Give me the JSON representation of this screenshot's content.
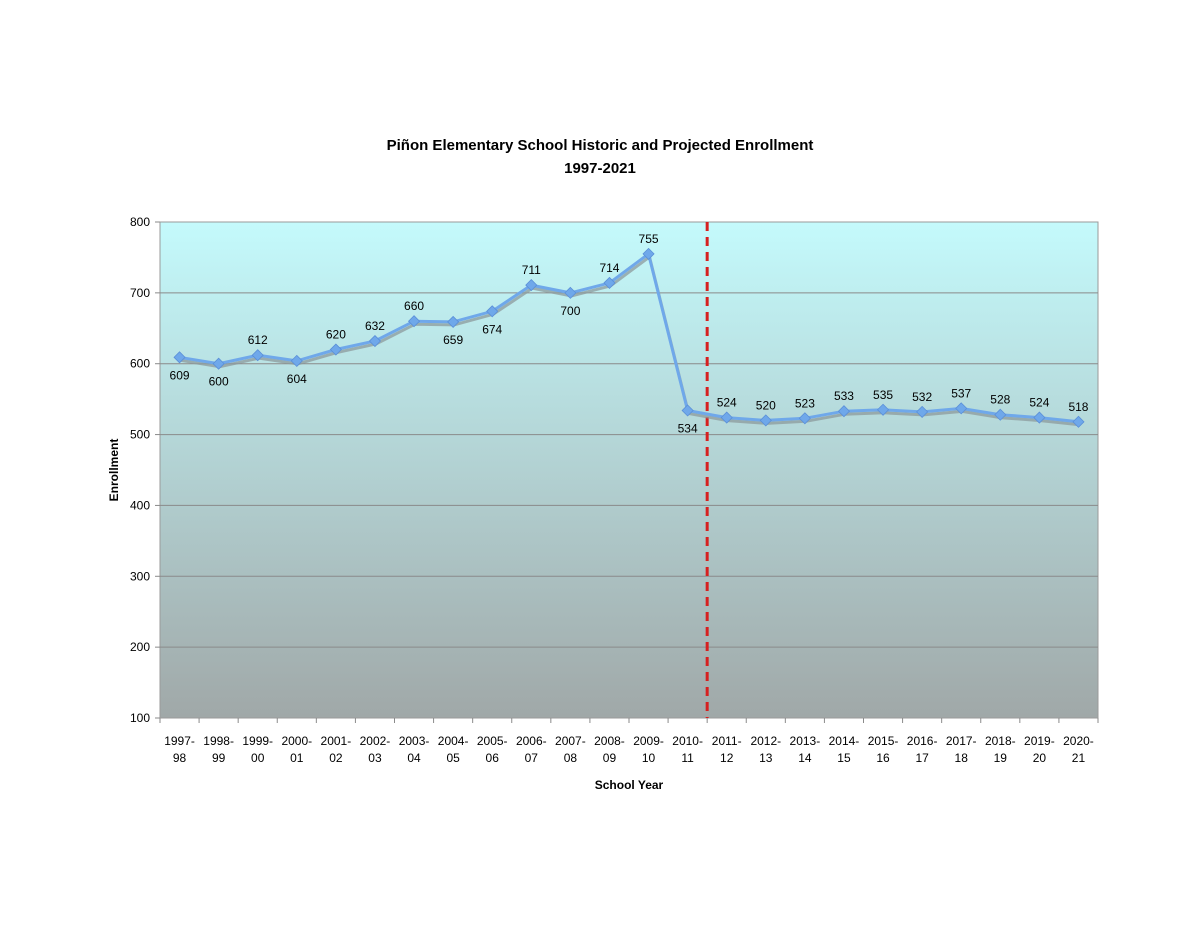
{
  "chart_data": {
    "type": "line",
    "title": "Piñon Elementary School Historic and Projected Enrollment",
    "subtitle": "1997-2021",
    "xlabel": "School Year",
    "ylabel": "Enrollment",
    "ylim": [
      100,
      800
    ],
    "yticks": [
      100,
      200,
      300,
      400,
      500,
      600,
      700,
      800
    ],
    "grid": true,
    "legend": "none",
    "categories": [
      [
        "1997-",
        "98"
      ],
      [
        "1998-",
        "99"
      ],
      [
        "1999-",
        "00"
      ],
      [
        "2000-",
        "01"
      ],
      [
        "2001-",
        "02"
      ],
      [
        "2002-",
        "03"
      ],
      [
        "2003-",
        "04"
      ],
      [
        "2004-",
        "05"
      ],
      [
        "2005-",
        "06"
      ],
      [
        "2006-",
        "07"
      ],
      [
        "2007-",
        "08"
      ],
      [
        "2008-",
        "09"
      ],
      [
        "2009-",
        "10"
      ],
      [
        "2010-",
        "11"
      ],
      [
        "2011-",
        "12"
      ],
      [
        "2012-",
        "13"
      ],
      [
        "2013-",
        "14"
      ],
      [
        "2014-",
        "15"
      ],
      [
        "2015-",
        "16"
      ],
      [
        "2016-",
        "17"
      ],
      [
        "2017-",
        "18"
      ],
      [
        "2018-",
        "19"
      ],
      [
        "2019-",
        "20"
      ],
      [
        "2020-",
        "21"
      ]
    ],
    "series": [
      {
        "values": [
          609,
          600,
          612,
          604,
          620,
          632,
          660,
          659,
          674,
          711,
          700,
          714,
          755,
          534,
          524,
          520,
          523,
          533,
          535,
          532,
          537,
          528,
          524,
          518
        ],
        "color": "#6fa8ea"
      }
    ],
    "label_position": [
      "below",
      "below",
      "above",
      "below",
      "above",
      "above",
      "above",
      "below",
      "below",
      "above",
      "below",
      "above",
      "above",
      "below",
      "above",
      "above",
      "above",
      "above",
      "above",
      "above",
      "above",
      "above",
      "above",
      "above"
    ],
    "projection_divider": {
      "after_category_index": 13,
      "color": "#d62020",
      "style": "dashed"
    },
    "background_gradient": [
      "#c4fafc",
      "#a0a8a8"
    ]
  }
}
